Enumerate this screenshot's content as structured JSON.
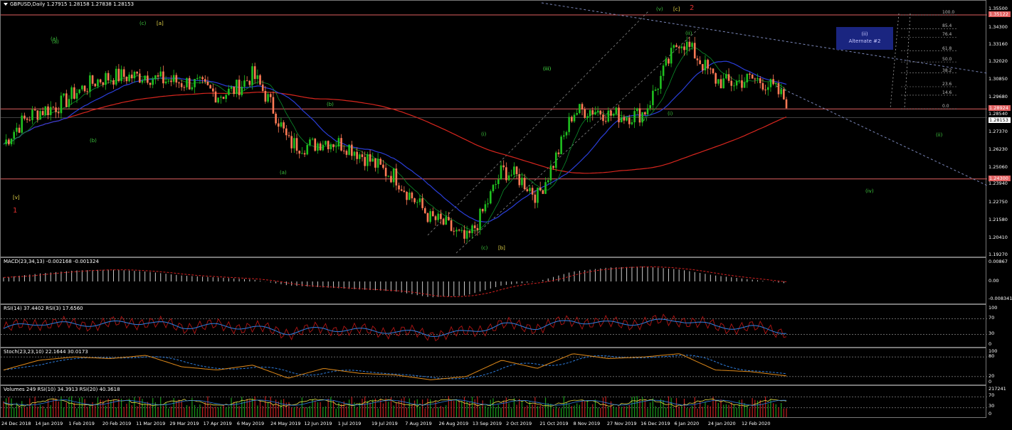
{
  "header": {
    "symbol_line": "GBPUSD,Daily  1.27915 1.28158 1.27838 1.28153"
  },
  "main_axis": {
    "ticks": [
      "1.35500",
      "1.34300",
      "1.33160",
      "1.32020",
      "1.30850",
      "1.29680",
      "1.28540",
      "1.27370",
      "1.26230",
      "1.25060",
      "1.23940",
      "1.22750",
      "1.21580",
      "1.20410",
      "1.19270"
    ],
    "tags": {
      "top": "1.35122",
      "upper": "1.28924",
      "current": "1.28153",
      "lower": "1.24300"
    }
  },
  "fib_levels": [
    "100.0",
    "85.4",
    "76.4",
    "61.8",
    "50.0",
    "38.2",
    "23.6",
    "14.6",
    "0.0"
  ],
  "alternate_box": {
    "line1": "(ii)",
    "line2": "Alternate #2"
  },
  "wave_labels": [
    {
      "text": "(a)",
      "color": "#3ec73e"
    },
    {
      "text": "(b)",
      "color": "#3ec73e"
    },
    {
      "text": "(c)",
      "color": "#3ec73e"
    },
    {
      "text": "[a]",
      "color": "#e8d84a"
    },
    {
      "text": "[v]",
      "color": "#e8d84a"
    },
    {
      "text": "1",
      "color": "#e03030"
    },
    {
      "text": "(b)",
      "color": "#3ec73e"
    },
    {
      "text": "(a)",
      "color": "#3ec73e"
    },
    {
      "text": "(a)",
      "color": "#3ec73e"
    },
    {
      "text": "(c)",
      "color": "#3ec73e"
    },
    {
      "text": "[b]",
      "color": "#e8d84a"
    },
    {
      "text": "(i)",
      "color": "#3ec73e"
    },
    {
      "text": "(ii)",
      "color": "#3ec73e"
    },
    {
      "text": "(iii)",
      "color": "#3ec73e"
    },
    {
      "text": "(iv)",
      "color": "#3ec73e"
    },
    {
      "text": "(v)",
      "color": "#3ec73e"
    },
    {
      "text": "[c]",
      "color": "#e8d84a"
    },
    {
      "text": "2",
      "color": "#e03030"
    },
    {
      "text": "(i)",
      "color": "#3ec73e"
    },
    {
      "text": "(ii)",
      "color": "#3ec73e"
    },
    {
      "text": "(iv)",
      "color": "#3ec73e"
    },
    {
      "text": "(iii)",
      "color": "#3ec73e"
    }
  ],
  "macd": {
    "title": "MACD(23,34,13) -0.002168 -0.001324",
    "ticks": [
      "0.00867",
      "0.00",
      "-0.008341"
    ]
  },
  "rsi": {
    "title": "RSI(14) 37.4402  RSI(3) 17.6560",
    "ticks": [
      "100",
      "70",
      "30",
      "0"
    ]
  },
  "stoch": {
    "title": "Stoch(23,23,10) 22.1644 30.0173",
    "ticks": [
      "100",
      "80",
      "20",
      "0"
    ]
  },
  "volume": {
    "title": "Volumes 249  RSI(10) 34.3913  RSI(20) 40.3618",
    "ticks": [
      "217241",
      "70",
      "30",
      "0"
    ]
  },
  "x_axis": [
    "24 Dec 2018",
    "14 Jan 2019",
    "1 Feb 2019",
    "20 Feb 2019",
    "11 Mar 2019",
    "29 Mar 2019",
    "17 Apr 2019",
    "6 May 2019",
    "24 May 2019",
    "12 Jun 2019",
    "1 Jul 2019",
    "19 Jul 2019",
    "7 Aug 2019",
    "26 Aug 2019",
    "13 Sep 2019",
    "2 Oct 2019",
    "21 Oct 2019",
    "8 Nov 2019",
    "27 Nov 2019",
    "16 Dec 2019",
    "6 Jan 2020",
    "24 Jan 2020",
    "12 Feb 2020"
  ],
  "colors": {
    "up": "#1fc01f",
    "down": "#ff7a55",
    "ma200": "#d8261e",
    "ma_blue": "#2a3ed8",
    "level": "#e06060",
    "trend": "#7a86b8"
  },
  "chart_data": {
    "type": "candlestick",
    "symbol": "GBPUSD",
    "timeframe": "Daily",
    "ohlc_last": {
      "open": 1.27915,
      "high": 1.28158,
      "low": 1.27838,
      "close": 1.28153
    },
    "ylim": [
      1.1927,
      1.355
    ],
    "horizontal_levels": [
      1.35122,
      1.28924,
      1.243
    ],
    "close_path": [
      [
        "24 Dec 2018",
        1.266
      ],
      [
        "14 Jan 2019",
        1.286
      ],
      [
        "1 Feb 2019",
        1.303
      ],
      [
        "20 Feb 2019",
        1.306
      ],
      [
        "11 Mar 2019",
        1.316
      ],
      [
        "29 Mar 2019",
        1.303
      ],
      [
        "17 Apr 2019",
        1.301
      ],
      [
        "6 May 2019",
        1.311
      ],
      [
        "24 May 2019",
        1.266
      ],
      [
        "12 Jun 2019",
        1.271
      ],
      [
        "1 Jul 2019",
        1.256
      ],
      [
        "19 Jul 2019",
        1.249
      ],
      [
        "7 Aug 2019",
        1.213
      ],
      [
        "26 Aug 2019",
        1.205
      ],
      [
        "13 Sep 2019",
        1.247
      ],
      [
        "2 Oct 2019",
        1.231
      ],
      [
        "21 Oct 2019",
        1.289
      ],
      [
        "8 Nov 2019",
        1.282
      ],
      [
        "27 Nov 2019",
        1.291
      ],
      [
        "16 Dec 2019",
        1.331
      ],
      [
        "6 Jan 2020",
        1.312
      ],
      [
        "24 Jan 2020",
        1.307
      ],
      [
        "12 Feb 2020",
        1.295
      ]
    ],
    "indicators": {
      "macd": [
        0.002,
        0.004,
        0.0055,
        0.006,
        0.005,
        0.003,
        0.002,
        0.001,
        -0.002,
        -0.003,
        -0.004,
        -0.005,
        -0.008,
        -0.007,
        -0.002,
        0.0,
        0.005,
        0.007,
        0.0075,
        0.006,
        0.003,
        0.001,
        -0.001
      ],
      "rsi14": [
        45,
        60,
        55,
        58,
        62,
        50,
        52,
        48,
        35,
        45,
        40,
        38,
        30,
        35,
        55,
        48,
        65,
        58,
        60,
        68,
        50,
        48,
        37
      ],
      "stoch": [
        40,
        70,
        80,
        75,
        85,
        50,
        40,
        55,
        15,
        45,
        30,
        25,
        10,
        20,
        70,
        45,
        90,
        75,
        80,
        90,
        40,
        35,
        22
      ]
    }
  }
}
